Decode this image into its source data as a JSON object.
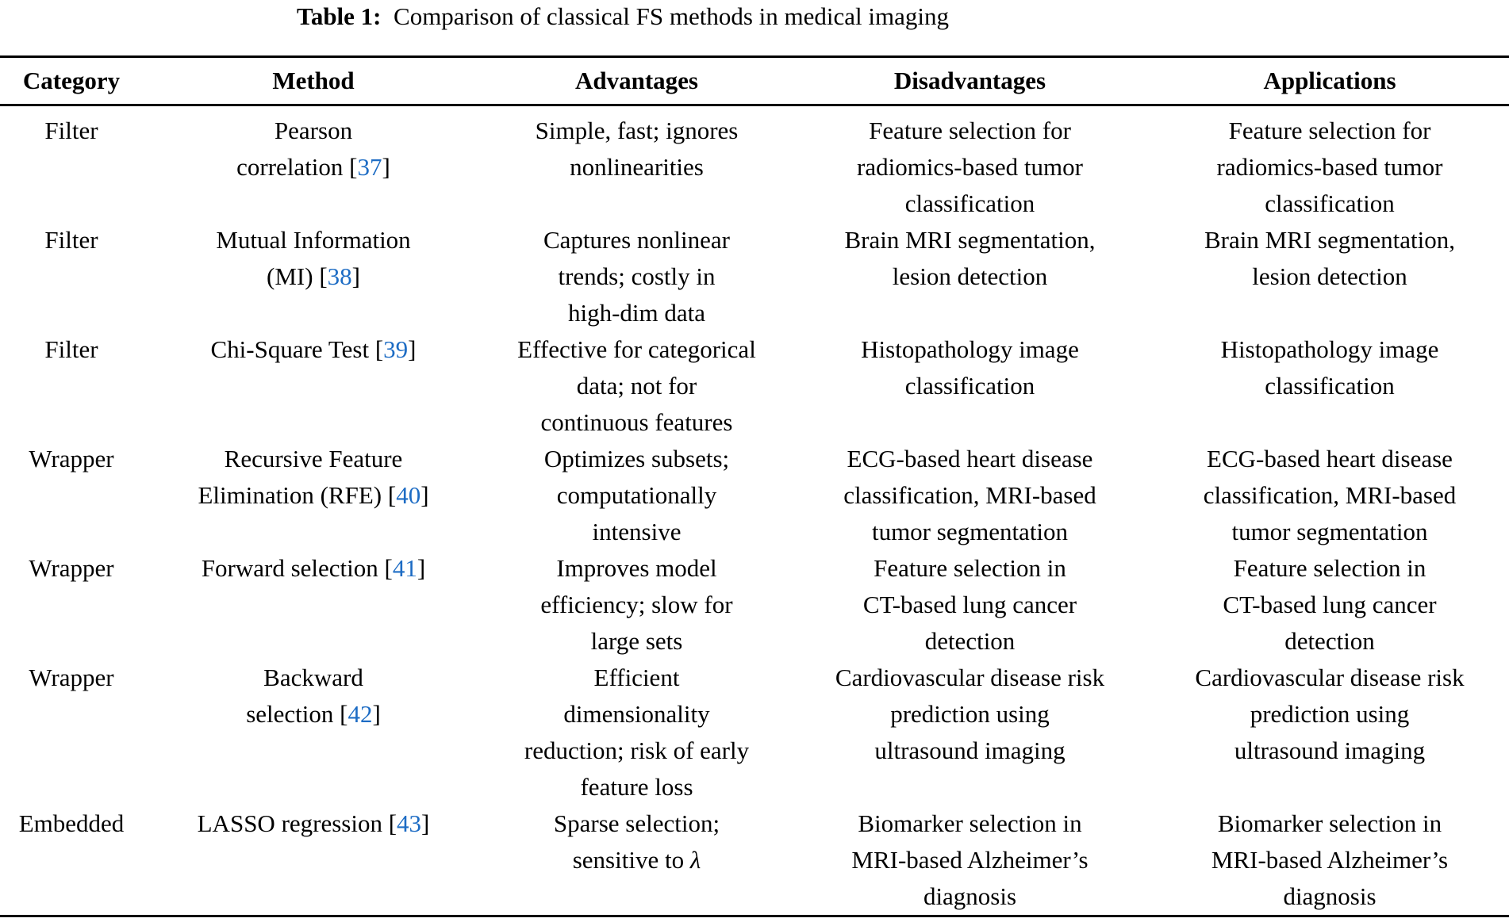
{
  "title": {
    "label": "Table 1:",
    "text": "Comparison of classical FS methods in medical imaging"
  },
  "colors": {
    "citation_blue": "#1d6cc4",
    "text": "#000000",
    "background": "#ffffff"
  },
  "table": {
    "headers": [
      "Category",
      "Method",
      "Advantages",
      "Disadvantages",
      "Applications"
    ],
    "rows": [
      {
        "category": "Filter",
        "method": "Pearson\ncorrelation [37]",
        "advantages": "Simple, fast; ignores\nnonlinearities",
        "disadvantages": "Feature selection for\nradiomics-based tumor\nclassification",
        "applications": "Feature selection for\nradiomics-based tumor\nclassification"
      },
      {
        "category": "Filter",
        "method": "Mutual Information\n(MI) [38]",
        "advantages": "Captures nonlinear\ntrends; costly in\nhigh-dim data",
        "disadvantages": "Brain MRI segmentation,\nlesion detection",
        "applications": "Brain MRI segmentation,\nlesion detection"
      },
      {
        "category": "Filter",
        "method": "Chi-Square Test [39]",
        "advantages": "Effective for categorical\ndata; not for\ncontinuous features",
        "disadvantages": "Histopathology image\nclassification",
        "applications": "Histopathology image\nclassification"
      },
      {
        "category": "Wrapper",
        "method": "Recursive Feature\nElimination (RFE) [40]",
        "advantages": "Optimizes subsets;\ncomputationally\nintensive",
        "disadvantages": "ECG-based heart disease\nclassification, MRI-based\ntumor segmentation",
        "applications": "ECG-based heart disease\nclassification, MRI-based\ntumor segmentation"
      },
      {
        "category": "Wrapper",
        "method": "Forward selection [41]",
        "advantages": "Improves model\nefficiency; slow for\nlarge sets",
        "disadvantages": "Feature selection in\nCT-based lung cancer\ndetection",
        "applications": "Feature selection in\nCT-based lung cancer\ndetection"
      },
      {
        "category": "Wrapper",
        "method": "Backward\nselection [42]",
        "advantages": "Efficient\ndimensionality\nreduction; risk of early\nfeature loss",
        "disadvantages": "Cardiovascular disease risk\nprediction using\nultrasound imaging",
        "applications": "Cardiovascular disease risk\nprediction using\nultrasound imaging"
      },
      {
        "category": "Embedded",
        "method": "LASSO regression [43]",
        "advantages": "Sparse selection;\nsensitive to λ",
        "disadvantages": "Biomarker selection in\nMRI-based Alzheimer’s\ndiagnosis",
        "applications": "Biomarker selection in\nMRI-based Alzheimer’s\ndiagnosis"
      }
    ]
  }
}
